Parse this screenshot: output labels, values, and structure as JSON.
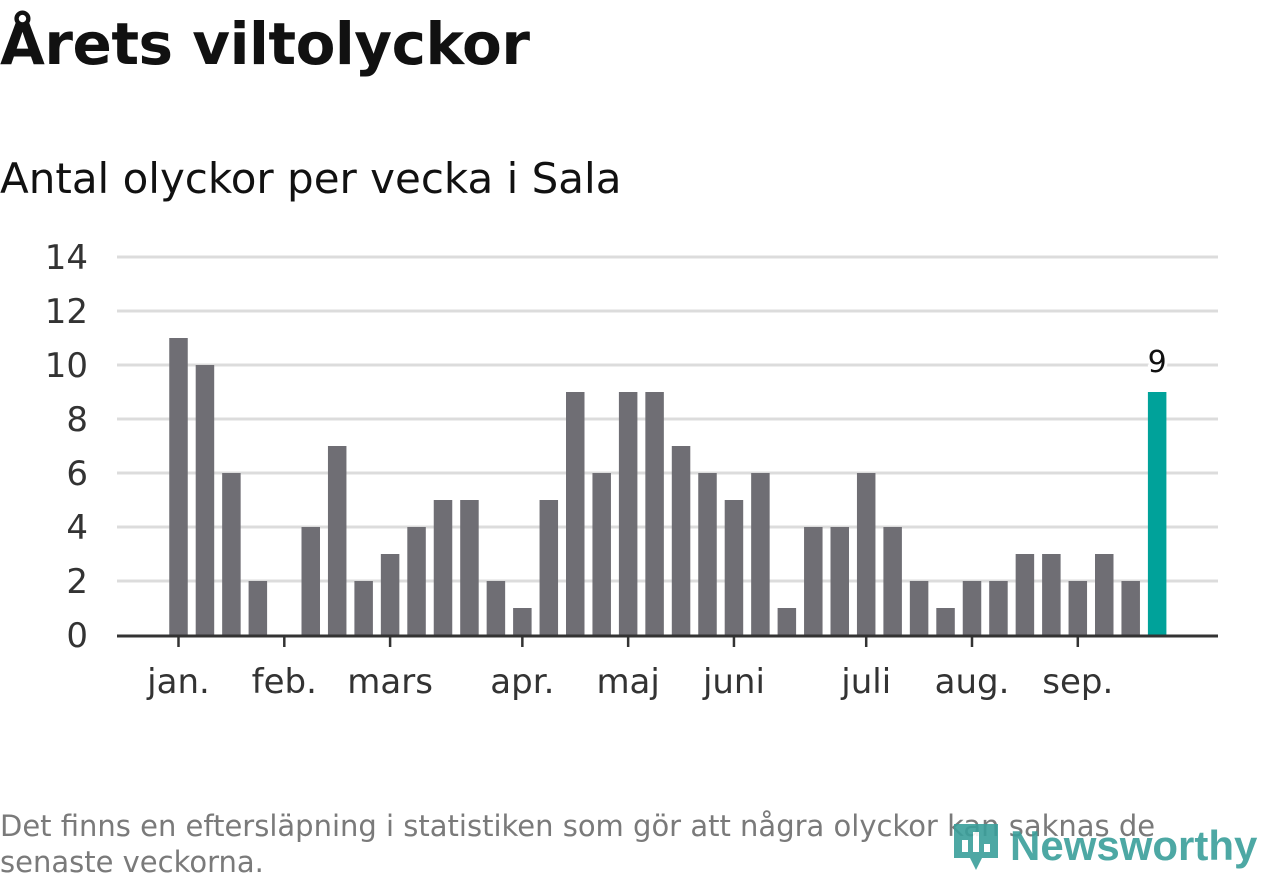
{
  "title": "Årets viltolyckor",
  "subtitle": "Antal olyckor per vecka i Sala",
  "note": "Det finns en eftersläpning i statistiken som gör att några olyckor kan saknas de senaste veckorna.",
  "logo": {
    "text": "Newsworthy",
    "icon": "newsworthy-logo-icon"
  },
  "colors": {
    "bar": "#6f6e74",
    "highlight": "#00a29a",
    "grid": "#dcdcdc",
    "axis": "#333333",
    "logo": "#3a9f9b"
  },
  "chart_data": {
    "type": "bar",
    "title": "Antal olyckor per vecka i Sala",
    "xlabel": "",
    "ylabel": "",
    "ylim": [
      0,
      14
    ],
    "yticks": [
      0,
      2,
      4,
      6,
      8,
      10,
      12,
      14
    ],
    "grid": true,
    "values": [
      11,
      10,
      6,
      2,
      0,
      4,
      7,
      2,
      3,
      4,
      5,
      5,
      2,
      1,
      5,
      9,
      6,
      9,
      9,
      7,
      6,
      5,
      6,
      1,
      4,
      4,
      6,
      4,
      2,
      1,
      2,
      2,
      3,
      3,
      2,
      3,
      2,
      9
    ],
    "highlight_index": 37,
    "highlight_label": "9",
    "month_labels": [
      {
        "label": "jan.",
        "index": 0
      },
      {
        "label": "feb.",
        "index": 4
      },
      {
        "label": "mars",
        "index": 8
      },
      {
        "label": "apr.",
        "index": 13
      },
      {
        "label": "maj",
        "index": 17
      },
      {
        "label": "juni",
        "index": 21
      },
      {
        "label": "juli",
        "index": 26
      },
      {
        "label": "aug.",
        "index": 30
      },
      {
        "label": "sep.",
        "index": 34
      }
    ]
  }
}
